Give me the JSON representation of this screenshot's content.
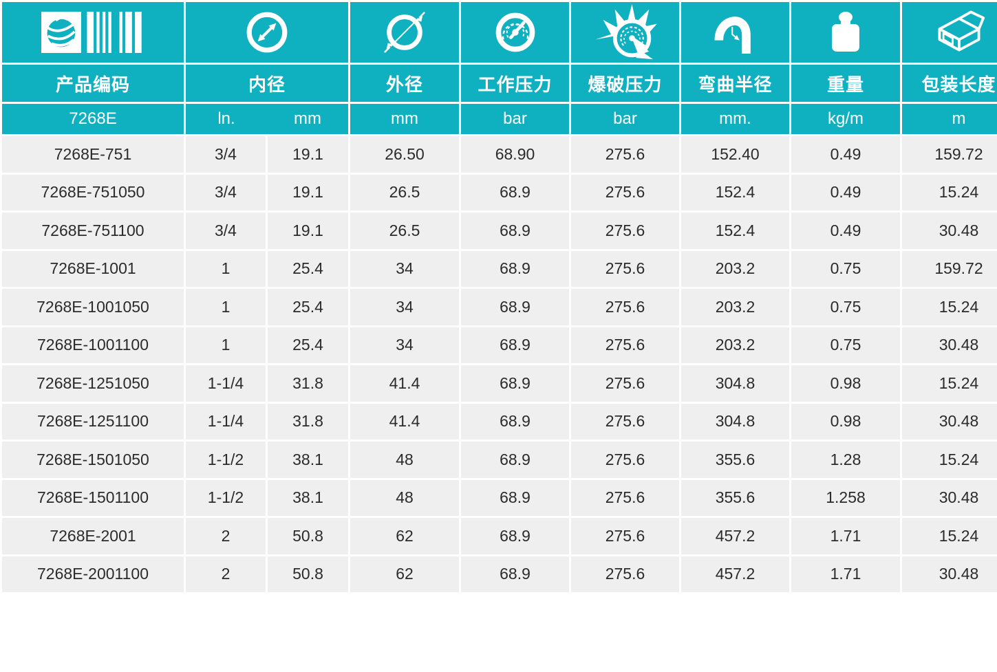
{
  "theme": {
    "accent_teal": "#0fb0c0",
    "row_gray": "#efefef",
    "text_dark": "#2b2b2b",
    "header_text": "#ffffff"
  },
  "header": {
    "icons": [
      "barcode-icon",
      "inner-diameter-icon",
      "outer-diameter-icon",
      "working-pressure-gauge-icon",
      "burst-pressure-icon",
      "bend-radius-icon",
      "weight-icon",
      "package-box-icon"
    ],
    "labels": {
      "product_code": "产品编码",
      "inner_diameter": "内径",
      "outer_diameter": "外径",
      "working_pressure": "工作压力",
      "burst_pressure": "爆破压力",
      "bend_radius": "弯曲半径",
      "weight": "重量",
      "package_length": "包装长度"
    },
    "units": {
      "series": "7268E",
      "inner_in": "ln.",
      "inner_mm": "mm",
      "outer_mm": "mm",
      "working_bar": "bar",
      "burst_bar": "bar",
      "bend_mm": "mm.",
      "weight_kgm": "kg/m",
      "length_m": "m"
    }
  },
  "table": {
    "column_keys": [
      "product-code",
      "inner-diameter-in",
      "inner-diameter-mm",
      "outer-diameter-mm",
      "working-pressure-bar",
      "burst-pressure-bar",
      "bend-radius-mm",
      "weight-kgm",
      "package-length-m"
    ],
    "rows": [
      [
        "7268E-751",
        "3/4",
        "19.1",
        "26.50",
        "68.90",
        "275.6",
        "152.40",
        "0.49",
        "159.72"
      ],
      [
        "7268E-751050",
        "3/4",
        "19.1",
        "26.5",
        "68.9",
        "275.6",
        "152.4",
        "0.49",
        "15.24"
      ],
      [
        "7268E-751100",
        "3/4",
        "19.1",
        "26.5",
        "68.9",
        "275.6",
        "152.4",
        "0.49",
        "30.48"
      ],
      [
        "7268E-1001",
        "1",
        "25.4",
        "34",
        "68.9",
        "275.6",
        "203.2",
        "0.75",
        "159.72"
      ],
      [
        "7268E-1001050",
        "1",
        "25.4",
        "34",
        "68.9",
        "275.6",
        "203.2",
        "0.75",
        "15.24"
      ],
      [
        "7268E-1001100",
        "1",
        "25.4",
        "34",
        "68.9",
        "275.6",
        "203.2",
        "0.75",
        "30.48"
      ],
      [
        "7268E-1251050",
        "1-1/4",
        "31.8",
        "41.4",
        "68.9",
        "275.6",
        "304.8",
        "0.98",
        "15.24"
      ],
      [
        "7268E-1251100",
        "1-1/4",
        "31.8",
        "41.4",
        "68.9",
        "275.6",
        "304.8",
        "0.98",
        "30.48"
      ],
      [
        "7268E-1501050",
        "1-1/2",
        "38.1",
        "48",
        "68.9",
        "275.6",
        "355.6",
        "1.28",
        "15.24"
      ],
      [
        "7268E-1501100",
        "1-1/2",
        "38.1",
        "48",
        "68.9",
        "275.6",
        "355.6",
        "1.258",
        "30.48"
      ],
      [
        "7268E-2001",
        "2",
        "50.8",
        "62",
        "68.9",
        "275.6",
        "457.2",
        "1.71",
        "15.24"
      ],
      [
        "7268E-2001100",
        "2",
        "50.8",
        "62",
        "68.9",
        "275.6",
        "457.2",
        "1.71",
        "30.48"
      ]
    ]
  }
}
